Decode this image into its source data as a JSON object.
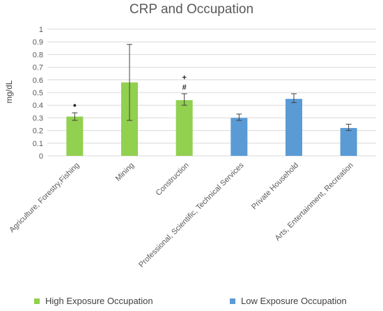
{
  "chart_data": {
    "type": "bar",
    "title": "CRP and Occupation",
    "ylabel": "mg/dL",
    "xlabel": "",
    "ylim": [
      0,
      1
    ],
    "yticks": [
      "0",
      "0.1",
      "0.2",
      "0.3",
      "0.4",
      "0.5",
      "0.6",
      "0.7",
      "0.8",
      "0.9",
      "1"
    ],
    "grid": true,
    "categories": [
      "Agriculture, Forestry,Fishing",
      "Mining",
      "Construction",
      "Professional, Scientific, Technical Services",
      "Private Household",
      "Arts, Entertainment, Recreation"
    ],
    "values": [
      0.31,
      0.58,
      0.44,
      0.3,
      0.45,
      0.22
    ],
    "error_low": [
      0.28,
      0.28,
      0.4,
      0.28,
      0.42,
      0.2
    ],
    "error_high": [
      0.34,
      0.88,
      0.49,
      0.33,
      0.49,
      0.25
    ],
    "groups": [
      "High Exposure Occupation",
      "High Exposure Occupation",
      "High Exposure Occupation",
      "Low Exposure Occupation",
      "Low Exposure Occupation",
      "Low Exposure Occupation"
    ],
    "annotations": [
      {
        "category": "Agriculture, Forestry,Fishing",
        "text": "•"
      },
      {
        "category": "Construction",
        "text": "+"
      },
      {
        "category": "Construction",
        "text": "#"
      }
    ],
    "legend": {
      "position": "bottom",
      "items": [
        {
          "name": "High Exposure Occupation",
          "color": "#92d050"
        },
        {
          "name": "Low Exposure Occupation",
          "color": "#5b9bd5"
        }
      ]
    },
    "colors": {
      "high": "#92d050",
      "low": "#5b9bd5",
      "grid": "#d9d9d9",
      "axis_text": "#595959"
    }
  }
}
